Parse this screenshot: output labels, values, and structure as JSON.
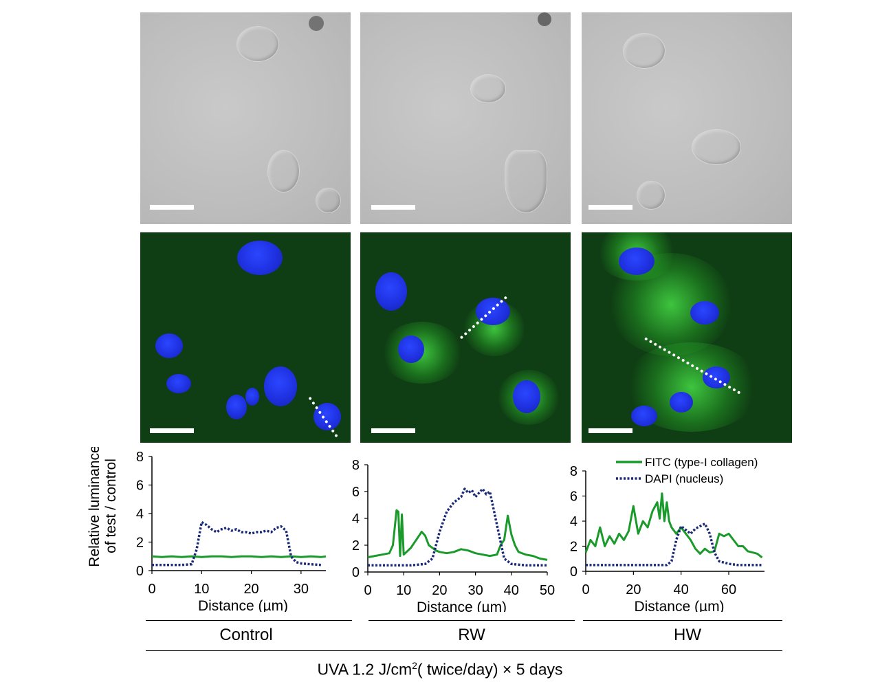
{
  "scale_bar_panels": [
    "dic-control",
    "dic-rw",
    "dic-hw",
    "fl-control",
    "fl-rw",
    "fl-hw"
  ],
  "y_axis_label_line1": "Relative luminance",
  "y_axis_label_line2": "of test / control",
  "legend": {
    "fitc": "FITC (type-I collagen)",
    "dapi": "DAPI (nucleus)"
  },
  "colors": {
    "fitc": "#1a9a2a",
    "dapi": "#1a2a78"
  },
  "condition_labels": [
    "Control",
    "RW",
    "HW"
  ],
  "treatment": {
    "prefix": "UVA 1.2 J/cm",
    "sup": "2",
    "suffix": "( twice/day) ×  5 days"
  },
  "chart_data": [
    {
      "type": "line",
      "condition": "Control",
      "xlabel": "Distance (µm)",
      "ylabel": "Relative luminance of test / control",
      "xlim": [
        0,
        35
      ],
      "ylim": [
        0,
        8
      ],
      "xticks": [
        0,
        10,
        20,
        30
      ],
      "yticks": [
        0,
        2,
        4,
        6,
        8
      ],
      "series": [
        {
          "name": "FITC (type-I collagen)",
          "style": "solid",
          "x": [
            0,
            2,
            4,
            6,
            8,
            10,
            12,
            14,
            16,
            18,
            20,
            22,
            24,
            26,
            28,
            30,
            32,
            34,
            35
          ],
          "y": [
            1.0,
            0.95,
            1.0,
            0.95,
            1.0,
            0.95,
            1.0,
            1.0,
            0.95,
            1.0,
            1.0,
            0.95,
            1.0,
            0.95,
            1.0,
            0.95,
            1.0,
            0.95,
            1.0
          ]
        },
        {
          "name": "DAPI (nucleus)",
          "style": "dotted",
          "x": [
            0,
            2,
            4,
            6,
            8,
            9,
            10,
            11,
            12,
            13,
            14,
            15,
            16,
            17,
            18,
            19,
            20,
            21,
            22,
            23,
            24,
            25,
            26,
            27,
            28,
            29,
            30,
            32,
            34
          ],
          "y": [
            0.4,
            0.4,
            0.4,
            0.4,
            0.45,
            1.5,
            3.4,
            3.2,
            2.9,
            2.7,
            2.9,
            3.0,
            2.8,
            2.9,
            2.7,
            2.7,
            2.6,
            2.7,
            2.7,
            2.8,
            2.7,
            3.0,
            3.1,
            2.8,
            1.0,
            0.6,
            0.5,
            0.45,
            0.4
          ]
        }
      ]
    },
    {
      "type": "line",
      "condition": "RW",
      "xlabel": "Distance (µm)",
      "ylabel": "",
      "xlim": [
        0,
        50
      ],
      "ylim": [
        0,
        8
      ],
      "xticks": [
        0,
        10,
        20,
        30,
        40,
        50
      ],
      "yticks": [
        0,
        2,
        4,
        6,
        8
      ],
      "series": [
        {
          "name": "FITC (type-I collagen)",
          "style": "solid",
          "x": [
            0,
            2,
            4,
            6,
            7,
            8,
            8.5,
            9,
            9.5,
            10,
            12,
            14,
            15,
            16,
            17,
            18,
            19,
            20,
            22,
            24,
            26,
            28,
            30,
            32,
            34,
            36,
            37,
            38,
            39,
            40,
            41,
            42,
            44,
            46,
            48,
            50
          ],
          "y": [
            1.1,
            1.2,
            1.3,
            1.4,
            2.0,
            4.6,
            4.5,
            1.2,
            4.3,
            1.3,
            1.8,
            2.6,
            3.0,
            2.7,
            2.0,
            1.8,
            1.6,
            1.5,
            1.4,
            1.5,
            1.7,
            1.6,
            1.4,
            1.3,
            1.2,
            1.3,
            2.0,
            2.4,
            4.2,
            2.8,
            2.0,
            1.5,
            1.3,
            1.2,
            1.0,
            0.9
          ]
        },
        {
          "name": "DAPI (nucleus)",
          "style": "dotted",
          "x": [
            0,
            4,
            8,
            12,
            16,
            18,
            20,
            22,
            24,
            26,
            27,
            28,
            29,
            30,
            31,
            32,
            33,
            34,
            36,
            38,
            40,
            44,
            48,
            50
          ],
          "y": [
            0.5,
            0.5,
            0.5,
            0.5,
            0.6,
            1.0,
            3.0,
            4.5,
            5.2,
            5.6,
            6.2,
            5.9,
            6.1,
            5.6,
            5.9,
            6.2,
            5.8,
            6.0,
            3.5,
            1.0,
            0.6,
            0.5,
            0.5,
            0.5
          ]
        }
      ]
    },
    {
      "type": "line",
      "condition": "HW",
      "xlabel": "Distance (µm)",
      "ylabel": "",
      "xlim": [
        0,
        75
      ],
      "ylim": [
        0,
        8
      ],
      "xticks": [
        0,
        20,
        40,
        60
      ],
      "yticks": [
        0,
        2,
        4,
        6,
        8
      ],
      "series": [
        {
          "name": "FITC (type-I collagen)",
          "style": "solid",
          "x": [
            0,
            2,
            4,
            6,
            8,
            10,
            12,
            14,
            16,
            18,
            20,
            22,
            24,
            26,
            28,
            30,
            31,
            32,
            33,
            34,
            35,
            36,
            38,
            40,
            42,
            44,
            46,
            48,
            50,
            52,
            54,
            56,
            58,
            60,
            62,
            64,
            66,
            68,
            70,
            72,
            74
          ],
          "y": [
            1.5,
            2.5,
            2.0,
            3.5,
            2.0,
            2.8,
            2.2,
            3.0,
            2.5,
            3.2,
            5.2,
            3.0,
            4.0,
            3.5,
            4.8,
            5.5,
            4.2,
            6.2,
            4.0,
            5.5,
            4.0,
            3.5,
            3.0,
            3.5,
            3.0,
            2.5,
            1.8,
            1.4,
            1.8,
            1.5,
            1.6,
            3.0,
            2.8,
            3.0,
            2.5,
            2.0,
            2.0,
            1.6,
            1.5,
            1.4,
            1.1
          ]
        },
        {
          "name": "DAPI (nucleus)",
          "style": "dotted",
          "x": [
            0,
            10,
            20,
            30,
            34,
            36,
            38,
            40,
            42,
            44,
            46,
            48,
            50,
            52,
            54,
            56,
            60,
            64,
            68,
            74
          ],
          "y": [
            0.5,
            0.5,
            0.5,
            0.5,
            0.5,
            0.8,
            2.5,
            3.6,
            3.3,
            3.0,
            3.4,
            3.6,
            3.8,
            3.0,
            1.5,
            0.8,
            0.6,
            0.5,
            0.5,
            0.5
          ]
        }
      ]
    }
  ]
}
